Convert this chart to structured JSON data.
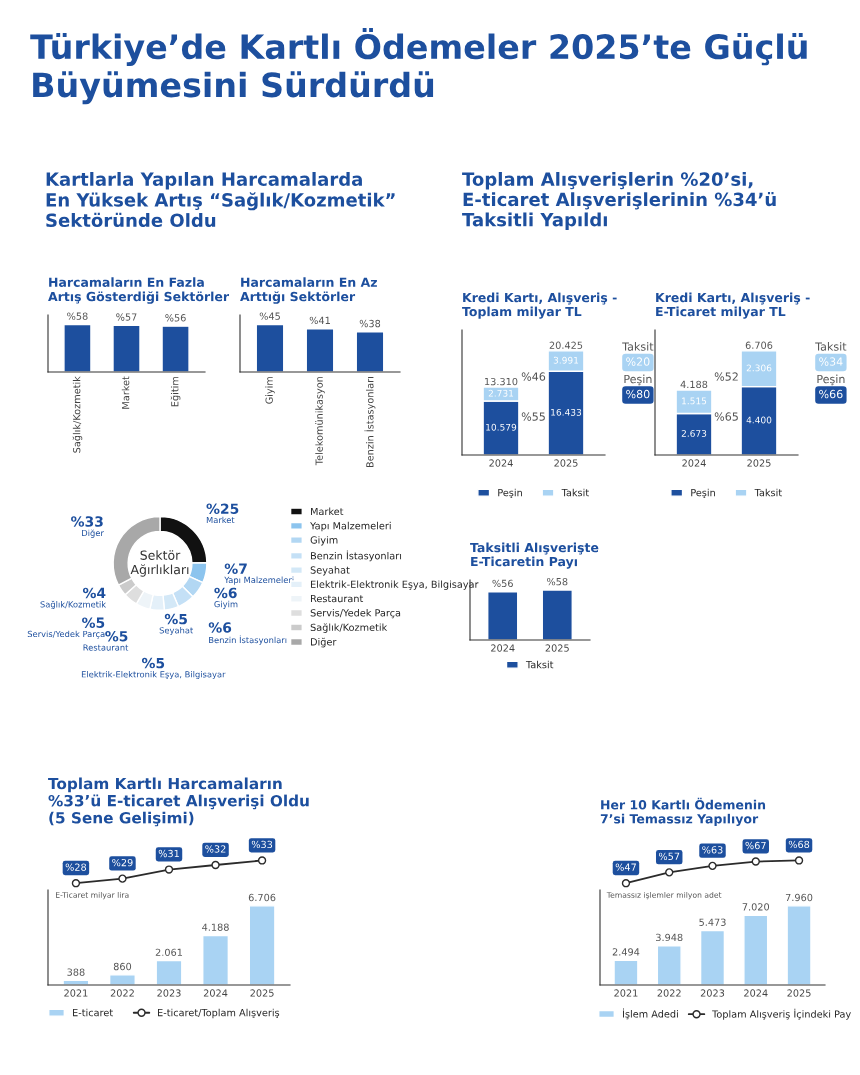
{
  "chart_data": [
    {
      "type": "other",
      "title": "Türkiye’de Kartlı Ödemeler 2025’te Güçlü Büyümesini Sürdürdü",
      "annotations": [
        "Kartlarla Yapılan Harcamalarda\nEn Yüksek Artış “Sağlık/Kozmetik”\nSektöründe Oldu",
        "Toplam Alışverişlerin %20’si,\nE-ticaret Alışverişlerinin %34’ü\nTaksitli Yapıldı"
      ]
    },
    {
      "type": "bar",
      "title": "Harcamaların En Fazla\nArtış Gösterdiği Sektörler",
      "categories": [
        "Sağlık/Kozmetik",
        "Market",
        "Eğitim"
      ],
      "values": [
        58,
        57,
        56
      ],
      "value_labels": [
        "%58",
        "%57",
        "%56"
      ],
      "color": "#1d4f9e",
      "tick_labels": "x",
      "grid": false
    },
    {
      "type": "bar",
      "title": "Harcamaların En Az\nArttığı Sektörler",
      "categories": [
        "Giyim",
        "Telekomünikasyon",
        "Benzin İstasyonları"
      ],
      "values": [
        45,
        41,
        38
      ],
      "value_labels": [
        "%45",
        "%41",
        "%38"
      ],
      "color": "#1d4f9e",
      "tick_labels": "x",
      "grid": false
    },
    {
      "type": "donut",
      "title": "Sektör\nAğırlıkları",
      "categories": [
        "Market",
        "Yapı Malzemeleri",
        "Giyim",
        "Benzin İstasyonları",
        "Seyahat",
        "Elektrik-Elektronik Eşya, Bilgisayar",
        "Restaurant",
        "Servis/Yedek Parça",
        "Sağlık/Kozmetik",
        "Diğer"
      ],
      "values": [
        25,
        7,
        6,
        6,
        5,
        5,
        5,
        5,
        4,
        33
      ],
      "value_labels": [
        "%25",
        "%7",
        "%6",
        "%6",
        "%5",
        "%5",
        "%5",
        "%5",
        "%4",
        "%33"
      ],
      "colors": [
        "#111111",
        "#8cc4ee",
        "#b2d7f3",
        "#c4e0f6",
        "#d3e8f7",
        "#e4f0f9",
        "#eef4f8",
        "#dedede",
        "#cbcbcb",
        "#a8a8a8"
      ],
      "legend": "right"
    },
    {
      "type": "bar",
      "stacked": true,
      "title": "Kredi Kartı, Alışveriş -\nToplam milyar TL",
      "categories": [
        "2024",
        "2025"
      ],
      "series": [
        {
          "name": "Peşin",
          "color": "#1d4f9e",
          "values": [
            10579,
            16433
          ],
          "value_labels": [
            "10.579",
            "16.433"
          ]
        },
        {
          "name": "Taksit",
          "color": "#a9d3f3",
          "values": [
            2731,
            3991
          ],
          "value_labels": [
            "2.731",
            "3.991"
          ]
        }
      ],
      "totals": [
        "13.310",
        "20.425"
      ],
      "annotations": [
        "%46",
        "%55",
        "Taksit",
        "%20",
        "Peşin",
        "%80"
      ],
      "tick_labels": "x",
      "grid": false,
      "legend": "bottom"
    },
    {
      "type": "bar",
      "stacked": true,
      "title": "Kredi Kartı, Alışveriş -\nE-Ticaret milyar TL",
      "categories": [
        "2024",
        "2025"
      ],
      "series": [
        {
          "name": "Peşin",
          "color": "#1d4f9e",
          "values": [
            2673,
            4400
          ],
          "value_labels": [
            "2.673",
            "4.400"
          ]
        },
        {
          "name": "Taksit",
          "color": "#a9d3f3",
          "values": [
            1515,
            2306
          ],
          "value_labels": [
            "1.515",
            "2.306"
          ]
        }
      ],
      "totals": [
        "4.188",
        "6.706"
      ],
      "annotations": [
        "%52",
        "%65",
        "Taksit",
        "%34",
        "Peşin",
        "%66"
      ],
      "tick_labels": "x",
      "grid": false,
      "legend": "bottom"
    },
    {
      "type": "bar",
      "title": "Taksitli Alışverişte\nE-Ticaretin Payı",
      "categories": [
        "2024",
        "2025"
      ],
      "series": [
        {
          "name": "Taksit",
          "color": "#1d4f9e",
          "values": [
            56,
            58
          ],
          "value_labels": [
            "%56",
            "%58"
          ]
        }
      ],
      "tick_labels": "x",
      "grid": false,
      "legend": "bottom"
    },
    {
      "type": "line",
      "title": "Toplam Kartlı Harcamaların\n%33’ü E-ticaret Alışverişi Oldu",
      "subtitle": "(5 Sene Gelişimi)",
      "categories": [
        "2021",
        "2022",
        "2023",
        "2024",
        "2025"
      ],
      "series": [
        {
          "name": "E-ticaret/Toplam Alışveriş",
          "color": "#2b2b2b",
          "values": [
            28,
            29,
            31,
            32,
            33
          ],
          "value_labels": [
            "%28",
            "%29",
            "%31",
            "%32",
            "%33"
          ]
        }
      ],
      "marker": "circle",
      "tick_labels": false,
      "grid": false,
      "legend": "bottom"
    },
    {
      "type": "bar",
      "ylabel": "E-Ticaret milyar lira",
      "categories": [
        "2021",
        "2022",
        "2023",
        "2024",
        "2025"
      ],
      "series": [
        {
          "name": "E-ticaret",
          "color": "#a9d3f3",
          "values": [
            388,
            860,
            2061,
            4188,
            6706
          ],
          "value_labels": [
            "388",
            "860",
            "2.061",
            "4.188",
            "6.706"
          ]
        }
      ],
      "tick_labels": "x",
      "grid": false,
      "legend": "bottom"
    },
    {
      "type": "line",
      "title": "Her 10 Kartlı Ödemenin\n7’si Temassız Yapılıyor",
      "categories": [
        "2021",
        "2022",
        "2023",
        "2024",
        "2025"
      ],
      "series": [
        {
          "name": "Toplam Alışveriş İçindeki Pay",
          "color": "#2b2b2b",
          "values": [
            47,
            57,
            63,
            67,
            68
          ],
          "value_labels": [
            "%47",
            "%57",
            "%63",
            "%67",
            "%68"
          ]
        }
      ],
      "marker": "circle",
      "tick_labels": false,
      "grid": false,
      "legend": "bottom"
    },
    {
      "type": "bar",
      "ylabel": "Temassız işlemler milyon adet",
      "categories": [
        "2021",
        "2022",
        "2023",
        "2024",
        "2025"
      ],
      "series": [
        {
          "name": "İşlem Adedi",
          "color": "#a9d3f3",
          "values": [
            2494,
            3948,
            5473,
            7020,
            7960
          ],
          "value_labels": [
            "2.494",
            "3.948",
            "5.473",
            "7.020",
            "7.960"
          ]
        }
      ],
      "tick_labels": "x",
      "grid": false,
      "legend": "bottom"
    }
  ]
}
